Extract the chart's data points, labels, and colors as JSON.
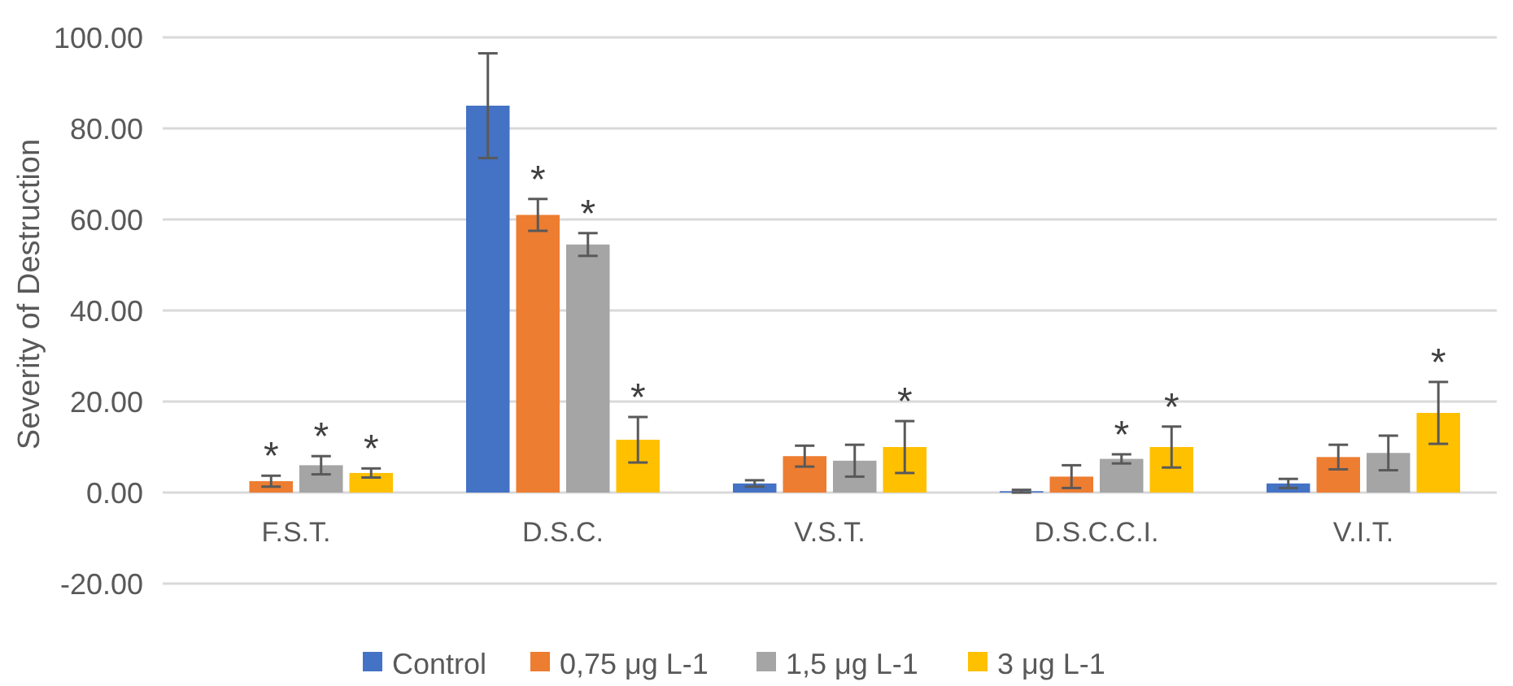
{
  "chart_data": {
    "type": "bar",
    "ylabel": "Severity of Destruction",
    "categories": [
      "F.S.T.",
      "D.S.C.",
      "V.S.T.",
      "D.S.C.C.I.",
      "V.I.T."
    ],
    "series": [
      {
        "name": "Control",
        "color": "#4472c4",
        "values": [
          0,
          85,
          2,
          0.3,
          2
        ],
        "errors": [
          null,
          11.5,
          0.7,
          0.3,
          1
        ],
        "value_labels": [
          null,
          null,
          null,
          null,
          null
        ]
      },
      {
        "name": "0,75 μg L-1",
        "color": "#ed7d31",
        "values": [
          2.5,
          61,
          8,
          3.5,
          7.8
        ],
        "errors": [
          1.2,
          3.5,
          2.3,
          2.5,
          2.7
        ],
        "value_labels": [
          "*",
          "*",
          null,
          null,
          null
        ]
      },
      {
        "name": "1,5 μg L-1",
        "color": "#a5a5a5",
        "values": [
          6,
          54.5,
          7,
          7.4,
          8.7
        ],
        "errors": [
          2,
          2.5,
          3.5,
          1,
          3.8
        ],
        "value_labels": [
          "*",
          "*",
          null,
          "*",
          null
        ]
      },
      {
        "name": "3 μg L-1",
        "color": "#ffc000",
        "values": [
          4.3,
          11.6,
          10,
          10,
          17.5
        ],
        "errors": [
          1,
          5,
          5.7,
          4.5,
          6.8
        ],
        "value_labels": [
          "*",
          "*",
          "*",
          "*",
          "*"
        ]
      }
    ],
    "ylim": [
      -20,
      100
    ],
    "yticks": [
      {
        "value": -20,
        "label": "-20.00"
      },
      {
        "value": 0,
        "label": "0.00"
      },
      {
        "value": 20,
        "label": "20.00"
      },
      {
        "value": 40,
        "label": "40.00"
      },
      {
        "value": 60,
        "label": "60.00"
      },
      {
        "value": 80,
        "label": "80.00"
      },
      {
        "value": 100,
        "label": "100.00"
      }
    ],
    "grid": "y",
    "legend": "bottom"
  }
}
